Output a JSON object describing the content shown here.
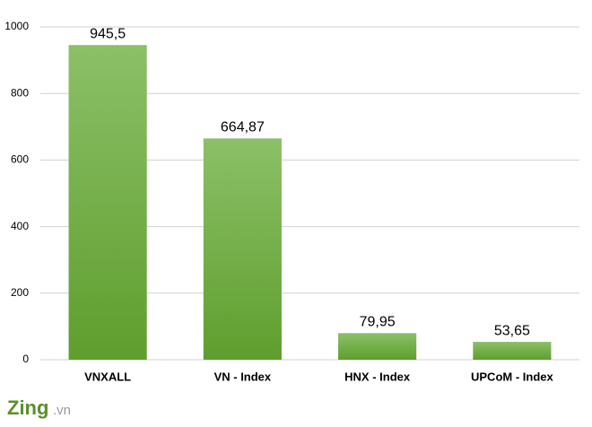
{
  "chart_data": {
    "type": "bar",
    "categories": [
      "VNXALL",
      "VN - Index",
      "HNX - Index",
      "UPCoM - Index"
    ],
    "values": [
      945.5,
      664.87,
      79.95,
      53.65
    ],
    "value_labels": [
      "945,5",
      "664,87",
      "79,95",
      "53,65"
    ],
    "color": "#72b043",
    "ylim": [
      0,
      1000
    ],
    "yticks": [
      0,
      200,
      400,
      600,
      800,
      1000
    ],
    "grid": true
  },
  "watermark": {
    "brand": "Zing",
    "suffix": ".vn"
  }
}
